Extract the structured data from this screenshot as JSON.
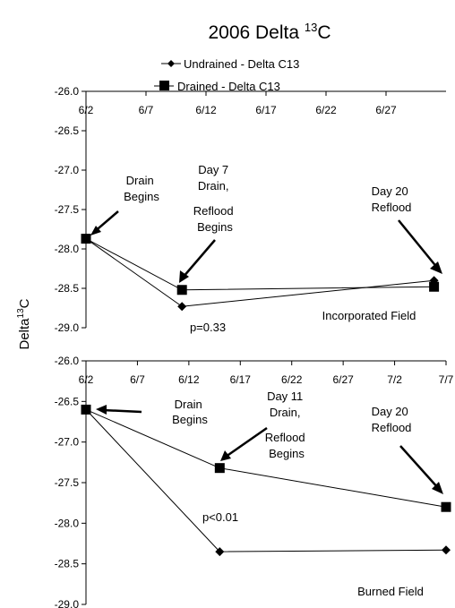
{
  "figure": {
    "title_main": "2006 Delta ",
    "title_sup": "13",
    "title_end": "C",
    "ylabel_main": "Delta",
    "ylabel_sup": "13",
    "ylabel_end": "C"
  },
  "legend": {
    "placement": "top-center",
    "items": [
      {
        "label": "Undrained - Delta C13",
        "marker": "diamond"
      },
      {
        "label": "Drained - Delta C13",
        "marker": "square"
      }
    ]
  },
  "chart_data": [
    {
      "type": "line",
      "panel_label": "Incorporated Field",
      "x_axis_position": "top",
      "xticks": [
        "6/2",
        "6/7",
        "6/12",
        "6/17",
        "6/22",
        "6/27"
      ],
      "ylim": [
        -29.0,
        -26.0
      ],
      "yticks": [
        "-26.0",
        "-26.5",
        "-27.0",
        "-27.5",
        "-28.0",
        "-28.5",
        "-29.0"
      ],
      "grid": false,
      "series": [
        {
          "name": "Undrained - Delta C13",
          "marker": "diamond",
          "x": [
            "6/2",
            "6/10",
            "7/1"
          ],
          "values": [
            -27.87,
            -28.73,
            -28.4
          ]
        },
        {
          "name": "Drained - Delta C13",
          "marker": "square",
          "x": [
            "6/2",
            "6/10",
            "7/1"
          ],
          "values": [
            -27.87,
            -28.52,
            -28.48
          ]
        }
      ],
      "annotations": [
        {
          "id": "drain",
          "lines": [
            "Drain",
            "Begins"
          ]
        },
        {
          "id": "day7",
          "lines": [
            "Day 7",
            "Drain,",
            "Reflood",
            "Begins"
          ]
        },
        {
          "id": "day20",
          "lines": [
            "Day 20",
            "Reflood"
          ]
        },
        {
          "id": "pval",
          "lines": [
            "p=0.33"
          ]
        }
      ]
    },
    {
      "type": "line",
      "panel_label": "Burned Field",
      "x_axis_position": "top",
      "xticks": [
        "6/2",
        "6/7",
        "6/12",
        "6/17",
        "6/22",
        "6/27",
        "7/2",
        "7/7"
      ],
      "ylim": [
        -29.0,
        -26.0
      ],
      "yticks": [
        "-26.0",
        "-26.5",
        "-27.0",
        "-27.5",
        "-28.0",
        "-28.5",
        "-29.0"
      ],
      "grid": false,
      "series": [
        {
          "name": "Undrained - Delta C13",
          "marker": "diamond",
          "x": [
            "6/2",
            "6/15",
            "7/7"
          ],
          "values": [
            -26.6,
            -28.35,
            -28.33
          ]
        },
        {
          "name": "Drained - Delta C13",
          "marker": "square",
          "x": [
            "6/2",
            "6/15",
            "7/7"
          ],
          "values": [
            -26.6,
            -27.32,
            -27.8
          ]
        }
      ],
      "annotations": [
        {
          "id": "drain",
          "lines": [
            "Drain",
            "Begins"
          ]
        },
        {
          "id": "day11",
          "lines": [
            "Day 11",
            "Drain,",
            "Reflood",
            "Begins"
          ]
        },
        {
          "id": "day20",
          "lines": [
            "Day 20",
            "Reflood"
          ]
        },
        {
          "id": "pval",
          "lines": [
            "p<0.01"
          ]
        }
      ]
    }
  ]
}
